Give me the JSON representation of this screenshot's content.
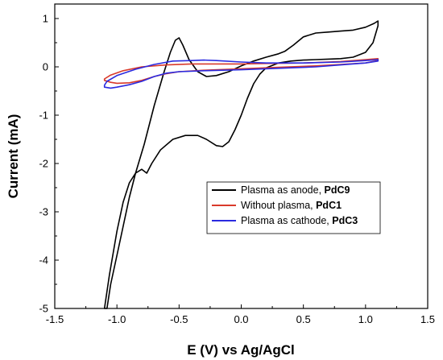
{
  "chart_data": {
    "type": "line",
    "title": "",
    "xlabel": "E (V) vs Ag/AgCl",
    "ylabel": "Current (mA)",
    "xlim": [
      -1.5,
      1.5
    ],
    "ylim": [
      -5,
      1.3
    ],
    "x_ticks": [
      -1.5,
      -1.0,
      -0.5,
      0.0,
      0.5,
      1.0,
      1.5
    ],
    "x_tick_labels": [
      "-1.5",
      "-1.0",
      "-0.5",
      "0.0",
      "0.5",
      "1.0",
      "1.5"
    ],
    "y_ticks": [
      -5,
      -4,
      -3,
      -2,
      -1,
      0,
      1
    ],
    "y_tick_labels": [
      "-5",
      "-4",
      "-3",
      "-2",
      "-1",
      "0",
      "1"
    ],
    "grid": false,
    "legend_position": "center-right",
    "series": [
      {
        "name": "Plasma as anode, ",
        "name_bold": "PdC9",
        "color": "#000000",
        "points": [
          [
            -1.1,
            -5.0
          ],
          [
            -1.06,
            -4.3
          ],
          [
            -1.0,
            -3.4
          ],
          [
            -0.95,
            -2.8
          ],
          [
            -0.9,
            -2.4
          ],
          [
            -0.85,
            -2.2
          ],
          [
            -0.8,
            -2.12
          ],
          [
            -0.76,
            -2.2
          ],
          [
            -0.72,
            -2.0
          ],
          [
            -0.65,
            -1.72
          ],
          [
            -0.55,
            -1.5
          ],
          [
            -0.45,
            -1.42
          ],
          [
            -0.35,
            -1.42
          ],
          [
            -0.28,
            -1.5
          ],
          [
            -0.2,
            -1.63
          ],
          [
            -0.15,
            -1.65
          ],
          [
            -0.1,
            -1.55
          ],
          [
            -0.05,
            -1.3
          ],
          [
            0.0,
            -1.0
          ],
          [
            0.05,
            -0.65
          ],
          [
            0.1,
            -0.35
          ],
          [
            0.15,
            -0.15
          ],
          [
            0.2,
            -0.02
          ],
          [
            0.3,
            0.08
          ],
          [
            0.4,
            0.12
          ],
          [
            0.5,
            0.14
          ],
          [
            0.6,
            0.15
          ],
          [
            0.7,
            0.16
          ],
          [
            0.8,
            0.17
          ],
          [
            0.9,
            0.2
          ],
          [
            1.0,
            0.3
          ],
          [
            1.06,
            0.5
          ],
          [
            1.1,
            0.85
          ],
          [
            1.1,
            0.95
          ],
          [
            1.07,
            0.9
          ],
          [
            1.0,
            0.82
          ],
          [
            0.9,
            0.76
          ],
          [
            0.8,
            0.74
          ],
          [
            0.7,
            0.72
          ],
          [
            0.6,
            0.7
          ],
          [
            0.5,
            0.62
          ],
          [
            0.42,
            0.45
          ],
          [
            0.35,
            0.32
          ],
          [
            0.3,
            0.27
          ],
          [
            0.2,
            0.2
          ],
          [
            0.1,
            0.12
          ],
          [
            0.0,
            0.02
          ],
          [
            -0.1,
            -0.1
          ],
          [
            -0.2,
            -0.18
          ],
          [
            -0.28,
            -0.2
          ],
          [
            -0.35,
            -0.1
          ],
          [
            -0.42,
            0.15
          ],
          [
            -0.47,
            0.45
          ],
          [
            -0.5,
            0.6
          ],
          [
            -0.53,
            0.55
          ],
          [
            -0.57,
            0.3
          ],
          [
            -0.62,
            -0.1
          ],
          [
            -0.7,
            -0.8
          ],
          [
            -0.78,
            -1.6
          ],
          [
            -0.85,
            -2.2
          ],
          [
            -0.9,
            -2.7
          ],
          [
            -0.95,
            -3.3
          ],
          [
            -1.0,
            -3.9
          ],
          [
            -1.05,
            -4.5
          ],
          [
            -1.08,
            -5.0
          ]
        ]
      },
      {
        "name": "Without plasma, ",
        "name_bold": "PdC1",
        "color": "#d93a2b",
        "points": [
          [
            -1.1,
            -0.28
          ],
          [
            -1.05,
            -0.32
          ],
          [
            -1.0,
            -0.34
          ],
          [
            -0.9,
            -0.33
          ],
          [
            -0.8,
            -0.28
          ],
          [
            -0.7,
            -0.2
          ],
          [
            -0.6,
            -0.14
          ],
          [
            -0.5,
            -0.1
          ],
          [
            -0.3,
            -0.07
          ],
          [
            0.0,
            -0.04
          ],
          [
            0.3,
            -0.01
          ],
          [
            0.6,
            0.02
          ],
          [
            0.8,
            0.05
          ],
          [
            1.0,
            0.08
          ],
          [
            1.1,
            0.13
          ],
          [
            1.1,
            0.17
          ],
          [
            1.0,
            0.15
          ],
          [
            0.8,
            0.11
          ],
          [
            0.5,
            0.08
          ],
          [
            0.2,
            0.07
          ],
          [
            0.0,
            0.06
          ],
          [
            -0.2,
            0.06
          ],
          [
            -0.4,
            0.06
          ],
          [
            -0.6,
            0.04
          ],
          [
            -0.8,
            0.0
          ],
          [
            -0.95,
            -0.08
          ],
          [
            -1.05,
            -0.17
          ],
          [
            -1.1,
            -0.25
          ]
        ]
      },
      {
        "name": "Plasma as cathode, ",
        "name_bold": "PdC3",
        "color": "#2a2ae0",
        "points": [
          [
            -1.1,
            -0.42
          ],
          [
            -1.05,
            -0.44
          ],
          [
            -1.0,
            -0.42
          ],
          [
            -0.9,
            -0.37
          ],
          [
            -0.8,
            -0.3
          ],
          [
            -0.7,
            -0.2
          ],
          [
            -0.6,
            -0.13
          ],
          [
            -0.5,
            -0.1
          ],
          [
            -0.3,
            -0.08
          ],
          [
            0.0,
            -0.06
          ],
          [
            0.3,
            -0.03
          ],
          [
            0.6,
            0.0
          ],
          [
            0.8,
            0.04
          ],
          [
            1.0,
            0.08
          ],
          [
            1.1,
            0.12
          ],
          [
            1.1,
            0.15
          ],
          [
            1.0,
            0.13
          ],
          [
            0.8,
            0.1
          ],
          [
            0.5,
            0.08
          ],
          [
            0.2,
            0.08
          ],
          [
            0.0,
            0.1
          ],
          [
            -0.2,
            0.13
          ],
          [
            -0.3,
            0.14
          ],
          [
            -0.4,
            0.13
          ],
          [
            -0.55,
            0.12
          ],
          [
            -0.7,
            0.05
          ],
          [
            -0.85,
            -0.05
          ],
          [
            -1.0,
            -0.18
          ],
          [
            -1.08,
            -0.3
          ],
          [
            -1.1,
            -0.38
          ]
        ]
      }
    ]
  }
}
